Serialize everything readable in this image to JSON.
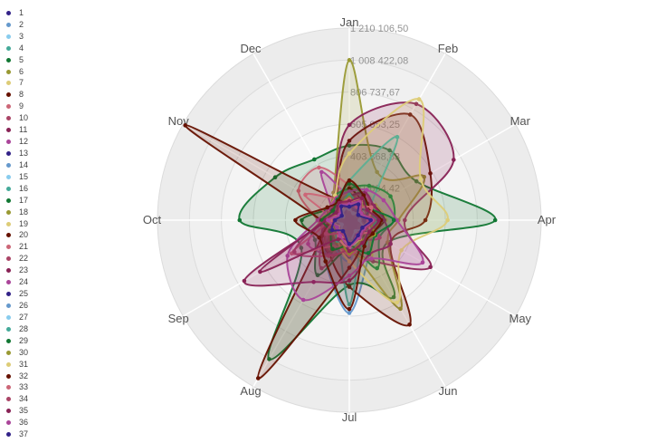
{
  "chart_data": {
    "type": "radar",
    "title": "",
    "categories": [
      "Jan",
      "Feb",
      "Mar",
      "Apr",
      "May",
      "Jun",
      "Jul",
      "Aug",
      "Sep",
      "Oct",
      "Nov",
      "Dec"
    ],
    "axis": {
      "max": 1210106.5,
      "rings": 6,
      "grid": true,
      "tick_labels_outer_to_inner": [
        "1 210 106,50",
        "1 008 422,08",
        "806 737,67",
        "605 053,25",
        "403 368,83",
        "201 684,42"
      ],
      "tick_values_outer_to_inner": [
        1210106.5,
        1008422.08,
        806737.67,
        605053.25,
        403368.83,
        201684.42
      ]
    },
    "legend_position": "left",
    "style": {
      "band_colors_outer_to_inner": [
        "#ececec",
        "#f0f0f0",
        "#f4f4f4",
        "#f7f7f7",
        "#fafafa",
        "#fdfdfd"
      ],
      "ring_stroke": "#dcdcdc",
      "spoke_color": "#ffffff",
      "spoke_ext_color": "#e2e2e2",
      "tick_label_color": "#949494",
      "month_label_color": "#545454",
      "fill_opacity": 0.16
    },
    "series": [
      {
        "name": "1",
        "color": "#332288",
        "values": [
          120000,
          90000,
          70000,
          150000,
          110000,
          80000,
          230000,
          140000,
          90000,
          160000,
          70000,
          100000
        ]
      },
      {
        "name": "2",
        "color": "#6699CC",
        "values": [
          150000,
          120000,
          180000,
          200000,
          160000,
          250000,
          585000,
          300000,
          140000,
          130000,
          110000,
          100000
        ]
      },
      {
        "name": "3",
        "color": "#88CCEE",
        "values": [
          80000,
          60000,
          110000,
          90000,
          140000,
          70000,
          180000,
          120000,
          60000,
          100000,
          50000,
          75000
        ]
      },
      {
        "name": "4",
        "color": "#44AA99",
        "values": [
          200000,
          140000,
          90000,
          180000,
          120000,
          160000,
          90000,
          230000,
          110000,
          140000,
          80000,
          120000
        ]
      },
      {
        "name": "5",
        "color": "#117733",
        "values": [
          470000,
          508000,
          489000,
          920000,
          280000,
          560000,
          410000,
          1011000,
          350000,
          692000,
          540000,
          442000
        ]
      },
      {
        "name": "6",
        "color": "#999933",
        "values": [
          1008422,
          350000,
          545000,
          310000,
          280000,
          645000,
          180000,
          220000,
          150000,
          130000,
          160000,
          200000
        ]
      },
      {
        "name": "7",
        "color": "#DDCC77",
        "values": [
          130000,
          170000,
          100000,
          140000,
          90000,
          120000,
          150000,
          80000,
          110000,
          70000,
          95000,
          125000
        ]
      },
      {
        "name": "8",
        "color": "#661100",
        "values": [
          500000,
          768000,
          590000,
          480000,
          300000,
          760000,
          420000,
          250000,
          180000,
          150000,
          130000,
          160000
        ]
      },
      {
        "name": "9",
        "color": "#CC6677",
        "values": [
          220000,
          180000,
          150000,
          170000,
          140000,
          160000,
          200000,
          250000,
          180000,
          200000,
          370000,
          383000
        ]
      },
      {
        "name": "10",
        "color": "#AA4466",
        "values": [
          160000,
          130000,
          170000,
          110000,
          190000,
          140000,
          120000,
          350000,
          200000,
          150000,
          100000,
          130000
        ]
      },
      {
        "name": "11",
        "color": "#882255",
        "values": [
          600000,
          845000,
          760000,
          350000,
          591000,
          300000,
          200000,
          250000,
          200000,
          150000,
          120000,
          180000
        ]
      },
      {
        "name": "12",
        "color": "#AA4499",
        "values": [
          150000,
          180000,
          140000,
          200000,
          160000,
          220000,
          190000,
          250000,
          300000,
          170000,
          130000,
          350000
        ]
      },
      {
        "name": "13",
        "color": "#332288",
        "values": [
          90000,
          110000,
          60000,
          130000,
          80000,
          100000,
          150000,
          70000,
          120000,
          60000,
          85000,
          105000
        ]
      },
      {
        "name": "14",
        "color": "#6699CC",
        "values": [
          130000,
          100000,
          150000,
          80000,
          170000,
          120000,
          260000,
          190000,
          100000,
          140000,
          75000,
          95000
        ]
      },
      {
        "name": "15",
        "color": "#88CCEE",
        "values": [
          60000,
          90000,
          45000,
          120000,
          70000,
          95000,
          130000,
          55000,
          85000,
          110000,
          40000,
          65000
        ]
      },
      {
        "name": "16",
        "color": "#44AA99",
        "values": [
          250000,
          605000,
          150000,
          200000,
          180000,
          160000,
          530000,
          140000,
          120000,
          130000,
          110000,
          140000
        ]
      },
      {
        "name": "17",
        "color": "#117733",
        "values": [
          200000,
          250000,
          300000,
          281000,
          220000,
          350000,
          180000,
          400000,
          250000,
          300000,
          150000,
          180000
        ]
      },
      {
        "name": "18",
        "color": "#999933",
        "values": [
          170000,
          140000,
          190000,
          230000,
          150000,
          280000,
          200000,
          160000,
          130000,
          180000,
          120000,
          150000
        ]
      },
      {
        "name": "19",
        "color": "#DDCC77",
        "values": [
          420000,
          880000,
          520000,
          620000,
          380000,
          600000,
          260000,
          150000,
          120000,
          100000,
          140000,
          180000
        ]
      },
      {
        "name": "20",
        "color": "#661100",
        "values": [
          200000,
          150000,
          180000,
          220000,
          160000,
          140000,
          300000,
          1150000,
          200000,
          180000,
          1195000,
          150000
        ]
      },
      {
        "name": "21",
        "color": "#CC6677",
        "values": [
          180000,
          140000,
          110000,
          160000,
          130000,
          170000,
          220000,
          190000,
          420000,
          140000,
          320000,
          160000
        ]
      },
      {
        "name": "22",
        "color": "#AA4466",
        "values": [
          140000,
          190000,
          160000,
          120000,
          220000,
          150000,
          180000,
          260000,
          400000,
          170000,
          130000,
          110000
        ]
      },
      {
        "name": "23",
        "color": "#882255",
        "values": [
          150000,
          200000,
          180000,
          220000,
          300000,
          250000,
          380000,
          450000,
          765000,
          140000,
          130000,
          120000
        ]
      },
      {
        "name": "24",
        "color": "#AA4499",
        "values": [
          180000,
          220000,
          250000,
          300000,
          534000,
          280000,
          350000,
          580000,
          450000,
          200000,
          150000,
          160000
        ]
      },
      {
        "name": "25",
        "color": "#332288",
        "values": [
          110000,
          70000,
          140000,
          95000,
          125000,
          85000,
          190000,
          115000,
          75000,
          135000,
          95000,
          60000
        ]
      },
      {
        "name": "26",
        "color": "#6699CC",
        "values": [
          95000,
          125000,
          80000,
          160000,
          105000,
          140000,
          175000,
          90000,
          115000,
          85000,
          60000,
          110000
        ]
      },
      {
        "name": "27",
        "color": "#88CCEE",
        "values": [
          70000,
          50000,
          95000,
          65000,
          110000,
          80000,
          140000,
          100000,
          55000,
          90000,
          45000,
          75000
        ]
      },
      {
        "name": "28",
        "color": "#44AA99",
        "values": [
          160000,
          110000,
          130000,
          170000,
          140000,
          190000,
          120000,
          150000,
          95000,
          115000,
          85000,
          105000
        ]
      },
      {
        "name": "29",
        "color": "#117733",
        "values": [
          230000,
          180000,
          150000,
          281000,
          190000,
          240000,
          160000,
          210000,
          140000,
          170000,
          120000,
          150000
        ]
      },
      {
        "name": "30",
        "color": "#999933",
        "values": [
          140000,
          110000,
          160000,
          130000,
          180000,
          150000,
          210000,
          120000,
          100000,
          140000,
          90000,
          115000
        ]
      },
      {
        "name": "31",
        "color": "#DDCC77",
        "values": [
          110000,
          150000,
          85000,
          125000,
          95000,
          135000,
          160000,
          105000,
          80000,
          115000,
          70000,
          95000
        ]
      },
      {
        "name": "32",
        "color": "#661100",
        "values": [
          250000,
          180000,
          150000,
          200000,
          170000,
          190000,
          560000,
          300000,
          220000,
          340000,
          160000,
          140000
        ]
      },
      {
        "name": "33",
        "color": "#CC6677",
        "values": [
          130000,
          95000,
          160000,
          120000,
          145000,
          105000,
          170000,
          135000,
          90000,
          125000,
          80000,
          110000
        ]
      },
      {
        "name": "34",
        "color": "#AA4466",
        "values": [
          105000,
          140000,
          90000,
          155000,
          115000,
          130000,
          145000,
          100000,
          170000,
          95000,
          75000,
          120000
        ]
      },
      {
        "name": "35",
        "color": "#882255",
        "values": [
          120000,
          160000,
          130000,
          185000,
          145000,
          165000,
          195000,
          140000,
          650000,
          150000,
          95000,
          125000
        ]
      },
      {
        "name": "36",
        "color": "#AA4499",
        "values": [
          100000,
          130000,
          85000,
          145000,
          105000,
          125000,
          160000,
          115000,
          90000,
          135000,
          70000,
          105000
        ]
      },
      {
        "name": "37",
        "color": "#332288",
        "values": [
          85000,
          115000,
          65000,
          135000,
          95000,
          110000,
          150000,
          80000,
          125000,
          90000,
          55000,
          100000
        ]
      }
    ]
  }
}
